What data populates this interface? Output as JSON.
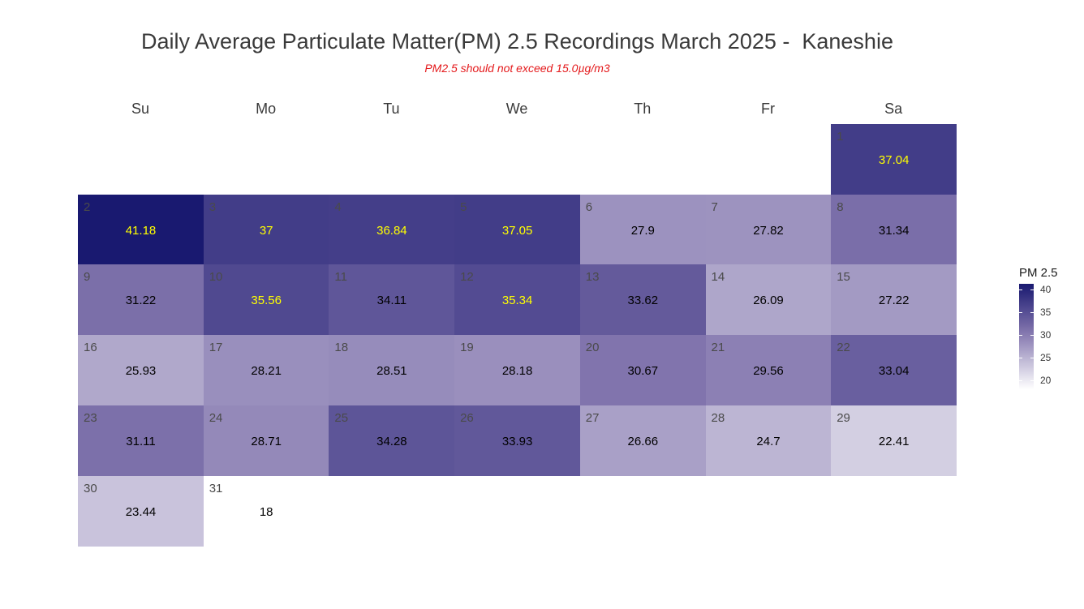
{
  "title": "Daily Average Particulate Matter(PM) 2.5 Recordings March 2025 -  Kaneshie",
  "subtitle": "PM2.5 should not exceed 15.0µg/m3",
  "chart_data": {
    "type": "heatmap",
    "subtype": "calendar",
    "month": "March 2025",
    "weekdays": [
      "Su",
      "Mo",
      "Tu",
      "We",
      "Th",
      "Fr",
      "Sa"
    ],
    "first_weekday_index": 6,
    "days": [
      {
        "day": 1,
        "value": 37.04
      },
      {
        "day": 2,
        "value": 41.18
      },
      {
        "day": 3,
        "value": 37
      },
      {
        "day": 4,
        "value": 36.84
      },
      {
        "day": 5,
        "value": 37.05
      },
      {
        "day": 6,
        "value": 27.9
      },
      {
        "day": 7,
        "value": 27.82
      },
      {
        "day": 8,
        "value": 31.34
      },
      {
        "day": 9,
        "value": 31.22
      },
      {
        "day": 10,
        "value": 35.56
      },
      {
        "day": 11,
        "value": 34.11
      },
      {
        "day": 12,
        "value": 35.34
      },
      {
        "day": 13,
        "value": 33.62
      },
      {
        "day": 14,
        "value": 26.09
      },
      {
        "day": 15,
        "value": 27.22
      },
      {
        "day": 16,
        "value": 25.93
      },
      {
        "day": 17,
        "value": 28.21
      },
      {
        "day": 18,
        "value": 28.51
      },
      {
        "day": 19,
        "value": 28.18
      },
      {
        "day": 20,
        "value": 30.67
      },
      {
        "day": 21,
        "value": 29.56
      },
      {
        "day": 22,
        "value": 33.04
      },
      {
        "day": 23,
        "value": 31.11
      },
      {
        "day": 24,
        "value": 28.71
      },
      {
        "day": 25,
        "value": 34.28
      },
      {
        "day": 26,
        "value": 33.93
      },
      {
        "day": 27,
        "value": 26.66
      },
      {
        "day": 28,
        "value": 24.7
      },
      {
        "day": 29,
        "value": 22.41
      },
      {
        "day": 30,
        "value": 23.44
      },
      {
        "day": 31,
        "value": 18
      }
    ],
    "highlight_threshold": 35,
    "highlight_label_color": "#ffff00",
    "normal_label_color": "#000000",
    "legend": {
      "title": "PM 2.5",
      "ticks": [
        20,
        25,
        30,
        35,
        40
      ],
      "range": [
        18,
        41.18
      ],
      "color_low": "#ffffff",
      "color_high": "#191970"
    }
  }
}
